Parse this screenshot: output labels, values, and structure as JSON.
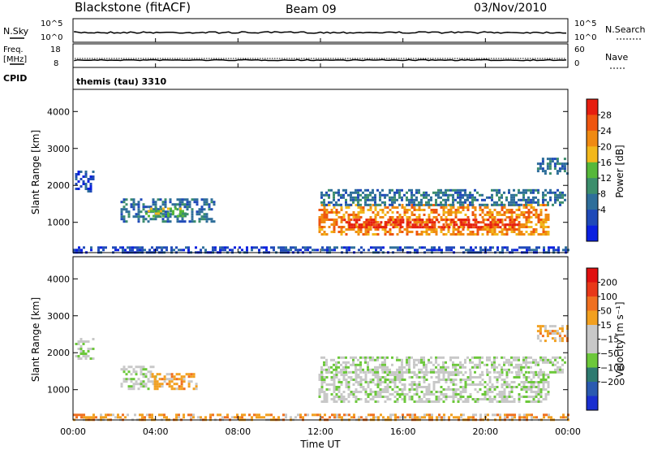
{
  "header": {
    "station": "Blackstone (fitACF)",
    "beam": "Beam 09",
    "date": "03/Nov/2010"
  },
  "top_panels": {
    "nsky_label": "N.Sky",
    "nsearch_label": "N.Search",
    "count_ticks": [
      "10^5",
      "10^0"
    ],
    "freq_label_1": "Freq.",
    "freq_label_2": "[MHz]",
    "freq_ticks": [
      "18",
      "8"
    ],
    "nave_label": "Nave",
    "nave_ticks": [
      "60",
      "0"
    ],
    "cpid_label": "CPID",
    "cpid_text": "themis (tau) 3310"
  },
  "colors": {
    "power_scale": [
      "#0a20e0",
      "#1f4ab8",
      "#2e6e9a",
      "#3c8e6c",
      "#56b83a",
      "#f2b81c",
      "#f08a12",
      "#ee5510",
      "#e61e10"
    ],
    "velocity_scale": [
      "#1a2fd0",
      "#2a5ab0",
      "#2e7a70",
      "#6cc83a",
      "#c8c8c8",
      "#c8c8c8",
      "#f2a020",
      "#f07020",
      "#e83818",
      "#e01010"
    ]
  },
  "chart_data": [
    {
      "type": "heatmap",
      "name": "power",
      "ylabel": "Slant Range [km]",
      "ylim": [
        180,
        4600
      ],
      "yticks": [
        "1000",
        "2000",
        "3000",
        "4000"
      ],
      "ytick_values": [
        1000,
        2000,
        3000,
        4000
      ],
      "colorbar_label": "Power [dB]",
      "colorbar_ticks": [
        "4",
        "8",
        "12",
        "16",
        "20",
        "24",
        "28"
      ],
      "features": [
        {
          "t0": 0.1,
          "t1": 1.0,
          "r0": 1850,
          "r1": 2400,
          "level": 1
        },
        {
          "t0": 2.3,
          "t1": 6.8,
          "r0": 1050,
          "r1": 1650,
          "level": 2
        },
        {
          "t0": 3.5,
          "t1": 5.5,
          "r0": 1200,
          "r1": 1400,
          "level": 4
        },
        {
          "t0": 11.9,
          "t1": 23.0,
          "r0": 650,
          "r1": 1500,
          "level": 6
        },
        {
          "t0": 13.0,
          "t1": 21.5,
          "r0": 850,
          "r1": 1100,
          "level": 8
        },
        {
          "t0": 12.0,
          "t1": 23.9,
          "r0": 1500,
          "r1": 1900,
          "level": 2
        },
        {
          "t0": 22.5,
          "t1": 24.0,
          "r0": 2300,
          "r1": 2750,
          "level": 2
        },
        {
          "t0": 0.0,
          "t1": 24.0,
          "r0": 180,
          "r1": 350,
          "level": 1
        }
      ]
    },
    {
      "type": "heatmap",
      "name": "velocity",
      "ylabel": "Slant Range [km]",
      "ylim": [
        180,
        4600
      ],
      "yticks": [
        "1000",
        "2000",
        "3000",
        "4000"
      ],
      "ytick_values": [
        1000,
        2000,
        3000,
        4000
      ],
      "colorbar_label": "Velocity [m s⁻¹]",
      "colorbar_ticks": [
        "200",
        "100",
        "50",
        "15",
        "−15",
        "−50",
        "−100",
        "−200"
      ],
      "features": [
        {
          "t0": 0.1,
          "t1": 1.0,
          "r0": 1850,
          "r1": 2400,
          "level": 4
        },
        {
          "t0": 2.3,
          "t1": 4.0,
          "r0": 1050,
          "r1": 1650,
          "level": 4
        },
        {
          "t0": 3.8,
          "t1": 6.0,
          "r0": 1050,
          "r1": 1450,
          "level": 6
        },
        {
          "t0": 11.9,
          "t1": 23.0,
          "r0": 650,
          "r1": 1500,
          "level": 4
        },
        {
          "t0": 12.0,
          "t1": 23.9,
          "r0": 1500,
          "r1": 1900,
          "level": 4
        },
        {
          "t0": 22.5,
          "t1": 24.0,
          "r0": 2300,
          "r1": 2750,
          "level": 6
        },
        {
          "t0": 0.0,
          "t1": 24.0,
          "r0": 180,
          "r1": 350,
          "level": 6
        }
      ]
    }
  ],
  "xaxis": {
    "label": "Time UT",
    "ticks": [
      "00:00",
      "04:00",
      "08:00",
      "12:00",
      "16:00",
      "20:00",
      "00:00"
    ],
    "tick_hours": [
      0,
      4,
      8,
      12,
      16,
      20,
      24
    ]
  }
}
